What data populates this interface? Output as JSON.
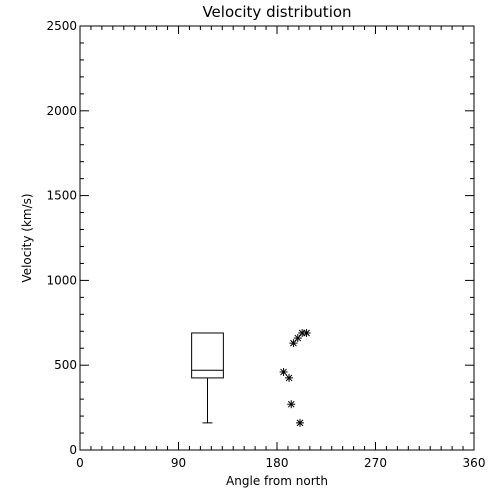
{
  "chart_data": {
    "type": "scatter",
    "title": "Velocity distribution",
    "xlabel": "Angle from north",
    "ylabel": "Velocity (km/s)",
    "xlim": [
      0,
      360
    ],
    "ylim": [
      0,
      2500
    ],
    "xticks": [
      0,
      90,
      180,
      270,
      360
    ],
    "yticks": [
      0,
      500,
      1000,
      1500,
      2000,
      2500
    ],
    "grid": false,
    "boxplot": {
      "x_range": [
        102,
        131
      ],
      "whisker_low": 160,
      "q1": 425,
      "median": 470,
      "q3": 690,
      "whisker_high": 690
    },
    "points": [
      {
        "x": 186,
        "y": 460
      },
      {
        "x": 191,
        "y": 425
      },
      {
        "x": 193,
        "y": 270
      },
      {
        "x": 195,
        "y": 630
      },
      {
        "x": 199,
        "y": 660
      },
      {
        "x": 201,
        "y": 160
      },
      {
        "x": 203,
        "y": 690
      },
      {
        "x": 207,
        "y": 690
      }
    ],
    "marker": "asterisk",
    "colors": {
      "foreground": "#000000",
      "background": "#ffffff"
    }
  }
}
